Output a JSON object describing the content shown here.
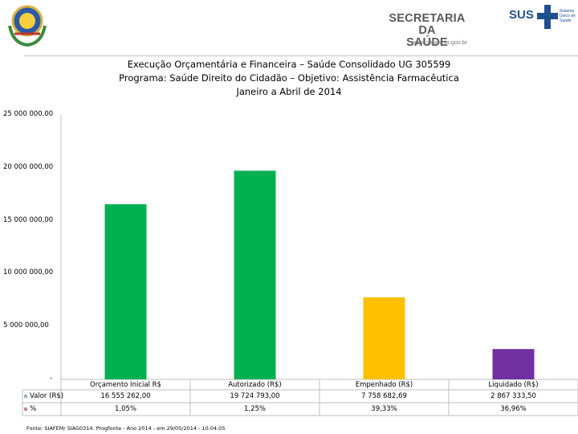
{
  "header": {
    "secretaria_line1": "SECRETARIA DA",
    "secretaria_line2": "SAÚDE",
    "url": "www.saude.to.gov.br",
    "sus_label": "SUS",
    "sus_small": "Sistema Único de Saúde"
  },
  "chart_data": {
    "type": "bar",
    "title_lines": [
      "Execução Orçamentária e Financeira –  Saúde Consolidado UG 305599",
      "Programa: Saúde Direito do Cidadão – Objetivo: Assistência Farmacêutica",
      "Janeiro a Abril de 2014"
    ],
    "categories": [
      "Orçamento Inicial R$",
      "Autorizado (R$)",
      "Empenhado (R$)",
      "Liquidado (R$)"
    ],
    "series": [
      {
        "name": "Valor (R$)",
        "values": [
          16555262.0,
          19724793.0,
          7758682.69,
          2867333.5
        ]
      },
      {
        "name": "%",
        "values": [
          1.05,
          1.25,
          39.33,
          36.96
        ]
      }
    ],
    "value_labels": [
      "16 555 262,00",
      "19 724 793,00",
      "7 758 682,69",
      "2 867 333,50"
    ],
    "percent_labels": [
      "1,05%",
      "1,25%",
      "39,33%",
      "36,96%"
    ],
    "bar_colors": [
      "#00b050",
      "#00b050",
      "#ffc000",
      "#7030a0"
    ],
    "ylim": [
      0,
      25000000
    ],
    "yticks": [
      0,
      5000000,
      10000000,
      15000000,
      20000000,
      25000000
    ],
    "ytick_labels": [
      "-",
      "5 000 000,00",
      "10 000 000,00",
      "15 000 000,00",
      "20 000 000,00",
      "25 000 000,00"
    ],
    "legend_placement": "data-table-left",
    "grid": false
  },
  "footnote": "Fonte: SIAFEM/ SIAG0314. Progfonte - Ano 2014 - em 29/05/2014 - 10.04.05"
}
